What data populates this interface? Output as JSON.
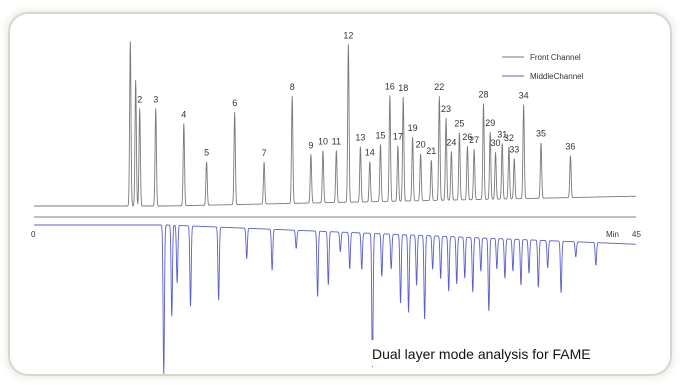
{
  "chart_data": {
    "type": "line",
    "title": "",
    "xlabel": "Min",
    "ylabel": "",
    "xlim": [
      0,
      45
    ],
    "x_tick_labels": [
      "0",
      "45"
    ],
    "caption": "Dual layer mode analysis for FAME",
    "legend_position": "top-right",
    "series": [
      {
        "name": "Front Channel",
        "color": "#7a7a7a",
        "peaks": [
          {
            "label": "",
            "t": 7.2,
            "h": 0.98
          },
          {
            "label": "",
            "t": 7.6,
            "h": 0.75
          },
          {
            "label": "2",
            "t": 7.9,
            "h": 0.58
          },
          {
            "label": "3",
            "t": 9.1,
            "h": 0.58
          },
          {
            "label": "4",
            "t": 11.2,
            "h": 0.49
          },
          {
            "label": "5",
            "t": 12.9,
            "h": 0.26
          },
          {
            "label": "6",
            "t": 15.0,
            "h": 0.55
          },
          {
            "label": "7",
            "t": 17.2,
            "h": 0.25
          },
          {
            "label": "8",
            "t": 19.3,
            "h": 0.64
          },
          {
            "label": "9",
            "t": 20.7,
            "h": 0.29
          },
          {
            "label": "10",
            "t": 21.6,
            "h": 0.31
          },
          {
            "label": "11",
            "t": 22.6,
            "h": 0.31
          },
          {
            "label": "12",
            "t": 23.5,
            "h": 0.94
          },
          {
            "label": "13",
            "t": 24.4,
            "h": 0.33
          },
          {
            "label": "14",
            "t": 25.1,
            "h": 0.24
          },
          {
            "label": "15",
            "t": 25.9,
            "h": 0.34
          },
          {
            "label": "16",
            "t": 26.6,
            "h": 0.63
          },
          {
            "label": "17",
            "t": 27.2,
            "h": 0.33
          },
          {
            "label": "18",
            "t": 27.6,
            "h": 0.62
          },
          {
            "label": "19",
            "t": 28.3,
            "h": 0.38
          },
          {
            "label": "20",
            "t": 28.9,
            "h": 0.28
          },
          {
            "label": "21",
            "t": 29.7,
            "h": 0.24
          },
          {
            "label": "22",
            "t": 30.3,
            "h": 0.62
          },
          {
            "label": "23",
            "t": 30.8,
            "h": 0.49
          },
          {
            "label": "24",
            "t": 31.2,
            "h": 0.29
          },
          {
            "label": "25",
            "t": 31.8,
            "h": 0.4
          },
          {
            "label": "26",
            "t": 32.4,
            "h": 0.32
          },
          {
            "label": "27",
            "t": 32.9,
            "h": 0.3
          },
          {
            "label": "28",
            "t": 33.6,
            "h": 0.57
          },
          {
            "label": "29",
            "t": 34.1,
            "h": 0.4
          },
          {
            "label": "30",
            "t": 34.5,
            "h": 0.28
          },
          {
            "label": "31",
            "t": 35.0,
            "h": 0.33
          },
          {
            "label": "32",
            "t": 35.5,
            "h": 0.31
          },
          {
            "label": "33",
            "t": 35.9,
            "h": 0.24
          },
          {
            "label": "34",
            "t": 36.6,
            "h": 0.56
          },
          {
            "label": "35",
            "t": 37.9,
            "h": 0.33
          },
          {
            "label": "36",
            "t": 40.1,
            "h": 0.25
          }
        ]
      },
      {
        "name": "MiddleChannel",
        "color": "#5b5fc7",
        "peaks": [
          {
            "t": 9.7,
            "h": 0.98
          },
          {
            "t": 10.3,
            "h": 0.6
          },
          {
            "t": 10.7,
            "h": 0.38
          },
          {
            "t": 11.7,
            "h": 0.53
          },
          {
            "t": 13.8,
            "h": 0.48
          },
          {
            "t": 15.9,
            "h": 0.2
          },
          {
            "t": 17.8,
            "h": 0.27
          },
          {
            "t": 19.6,
            "h": 0.12
          },
          {
            "t": 21.2,
            "h": 0.43
          },
          {
            "t": 22.0,
            "h": 0.35
          },
          {
            "t": 22.9,
            "h": 0.13
          },
          {
            "t": 23.6,
            "h": 0.24
          },
          {
            "t": 24.5,
            "h": 0.24
          },
          {
            "t": 25.3,
            "h": 0.88
          },
          {
            "t": 26.0,
            "h": 0.28
          },
          {
            "t": 26.7,
            "h": 0.23
          },
          {
            "t": 27.4,
            "h": 0.45
          },
          {
            "t": 28.0,
            "h": 0.51
          },
          {
            "t": 28.6,
            "h": 0.33
          },
          {
            "t": 29.2,
            "h": 0.55
          },
          {
            "t": 29.8,
            "h": 0.22
          },
          {
            "t": 30.4,
            "h": 0.28
          },
          {
            "t": 31.0,
            "h": 0.36
          },
          {
            "t": 31.6,
            "h": 0.31
          },
          {
            "t": 32.2,
            "h": 0.27
          },
          {
            "t": 32.8,
            "h": 0.36
          },
          {
            "t": 33.4,
            "h": 0.22
          },
          {
            "t": 34.0,
            "h": 0.48
          },
          {
            "t": 34.6,
            "h": 0.2
          },
          {
            "t": 35.2,
            "h": 0.26
          },
          {
            "t": 35.8,
            "h": 0.21
          },
          {
            "t": 36.4,
            "h": 0.3
          },
          {
            "t": 37.0,
            "h": 0.22
          },
          {
            "t": 37.7,
            "h": 0.31
          },
          {
            "t": 38.4,
            "h": 0.18
          },
          {
            "t": 39.4,
            "h": 0.34
          },
          {
            "t": 40.5,
            "h": 0.1
          },
          {
            "t": 42.0,
            "h": 0.15
          }
        ]
      }
    ]
  }
}
